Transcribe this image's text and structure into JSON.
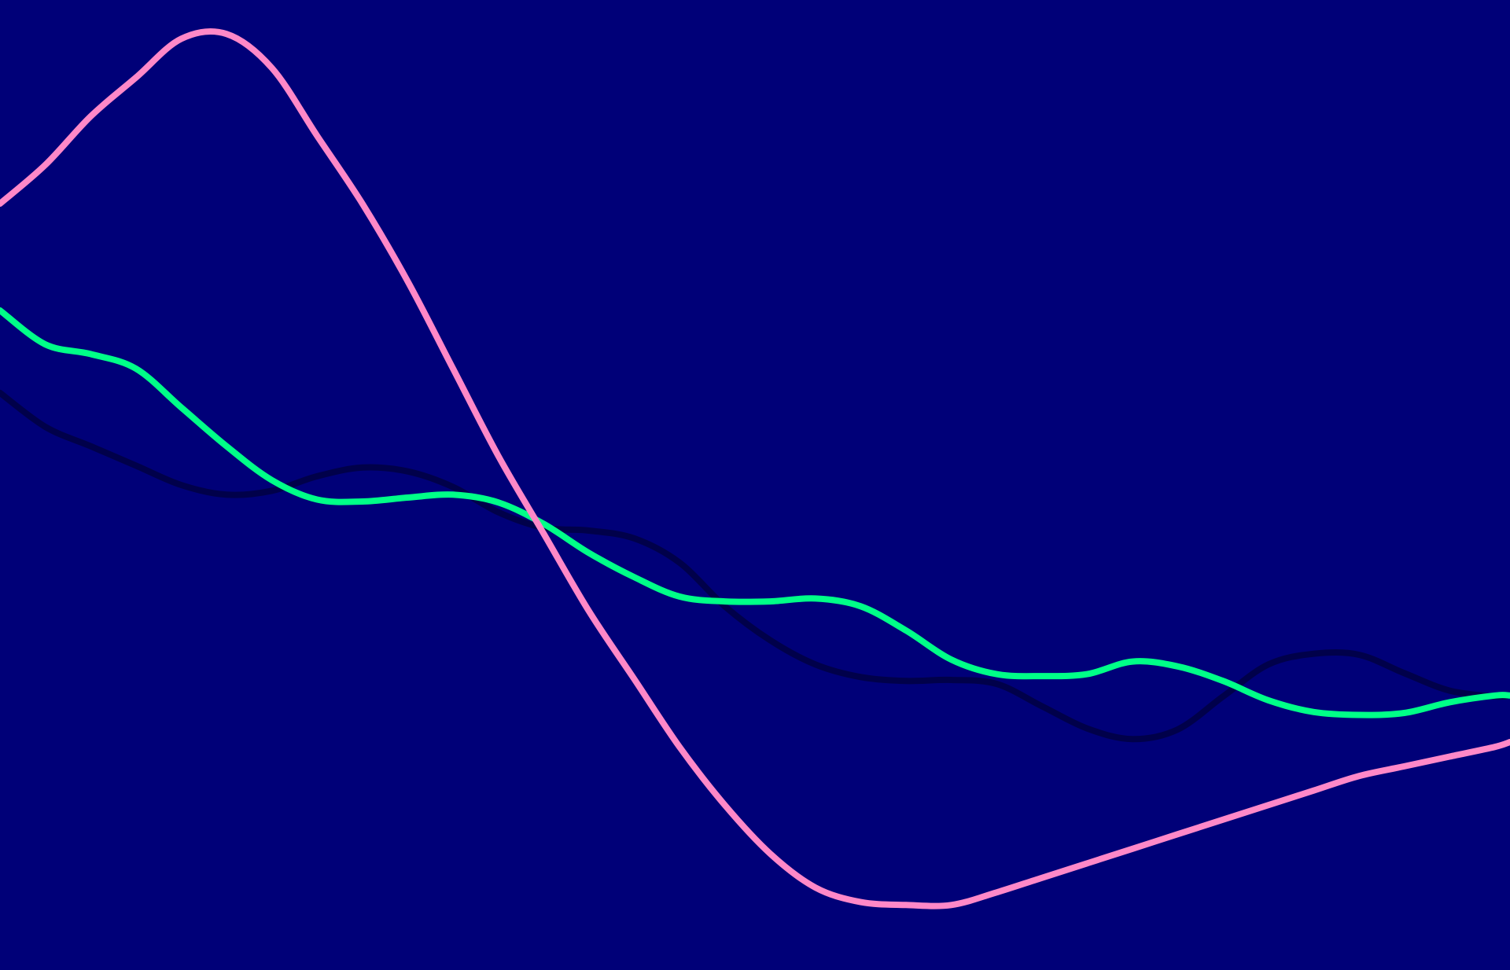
{
  "chart_data": {
    "type": "line",
    "title": "",
    "xlabel": "",
    "ylabel": "",
    "grid": false,
    "legend": "none",
    "background": "#000078",
    "x": [
      0,
      3,
      6,
      9,
      12,
      15,
      18,
      21,
      24,
      27,
      30,
      33,
      36,
      39,
      42,
      45,
      48,
      51,
      54,
      57,
      60,
      63,
      66,
      69,
      72,
      75,
      78,
      81,
      84,
      87,
      90,
      93,
      96,
      99,
      100
    ],
    "xlim": [
      0,
      100
    ],
    "ylim": [
      0,
      100
    ],
    "series": [
      {
        "color": "#ff88c8",
        "values": [
          79,
          83,
          88,
          92,
          96,
          96.5,
          93,
          86,
          79,
          71,
          62,
          53,
          45,
          37,
          30,
          23,
          17,
          12,
          8.5,
          7,
          6.7,
          6.7,
          8,
          9.5,
          11,
          12.5,
          14,
          15.5,
          17,
          18.5,
          20,
          21,
          22,
          23,
          23.5
        ]
      },
      {
        "color": "#00ff88",
        "values": [
          68,
          64.5,
          63.5,
          62,
          58,
          54,
          50.5,
          48.5,
          48.3,
          48.7,
          49,
          48.2,
          46,
          43,
          40.5,
          38.5,
          38,
          38,
          38.3,
          37.5,
          35,
          32,
          30.5,
          30.3,
          30.5,
          31.8,
          31.3,
          29.8,
          27.8,
          26.6,
          26.3,
          26.5,
          27.6,
          28.3,
          28.3
        ]
      },
      {
        "color": "#00004a",
        "values": [
          59.5,
          56,
          54,
          52,
          50,
          49,
          49.4,
          50.9,
          51.8,
          51.4,
          49.8,
          47.2,
          45.6,
          45.3,
          44.5,
          42,
          37.5,
          34,
          31.5,
          30.2,
          29.8,
          29.9,
          29.5,
          27.2,
          24.9,
          23.8,
          24.8,
          28.2,
          31.5,
          32.6,
          32.5,
          30.6,
          28.8,
          28.2,
          28.3
        ]
      }
    ]
  }
}
